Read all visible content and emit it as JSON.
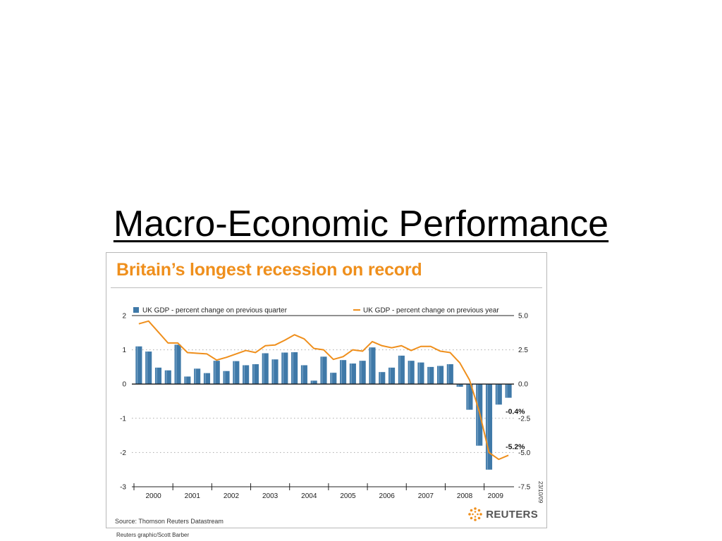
{
  "slide": {
    "title": "Macro-Economic Performance"
  },
  "chart_data": {
    "type": "bar",
    "title": "Britain’s longest recession on record",
    "source": "Source: Thomson Reuters Datastream",
    "logo": "REUTERS",
    "credit": "Reuters graphic/Scott Barber",
    "date_stamp": "23/10/09",
    "colors": {
      "bar": "#3f79a8",
      "line": "#ef8f1c",
      "title": "#ef8f1c"
    },
    "years": [
      "2000",
      "2001",
      "2002",
      "2003",
      "2004",
      "2005",
      "2006",
      "2007",
      "2008",
      "2009"
    ],
    "left_axis": {
      "ylim": [
        -3,
        2
      ],
      "ticks": [
        "2",
        "1",
        "0",
        "-1",
        "-2",
        "-3"
      ]
    },
    "right_axis": {
      "ylim": [
        -7.5,
        5.0
      ],
      "ticks": [
        "5.0",
        "2.5",
        "0.0",
        "-2.5",
        "-5.0",
        "-7.5"
      ]
    },
    "grid": "dotted",
    "series": [
      {
        "name": "UK GDP - percent change on previous quarter",
        "kind": "bar",
        "axis": "left",
        "values": [
          1.1,
          0.95,
          0.48,
          0.4,
          1.15,
          0.22,
          0.45,
          0.32,
          0.68,
          0.38,
          0.67,
          0.55,
          0.58,
          0.9,
          0.72,
          0.92,
          0.93,
          0.55,
          0.1,
          0.8,
          0.33,
          0.7,
          0.6,
          0.68,
          1.07,
          0.35,
          0.48,
          0.83,
          0.68,
          0.63,
          0.5,
          0.53,
          0.58,
          -0.08,
          -0.75,
          -1.8,
          -2.5,
          -0.6,
          -0.4
        ]
      },
      {
        "name": "UK GDP - percent change on previous year",
        "kind": "line",
        "axis": "right",
        "values": [
          4.4,
          4.6,
          3.8,
          3.0,
          3.0,
          2.3,
          2.25,
          2.2,
          1.75,
          1.95,
          2.2,
          2.45,
          2.3,
          2.8,
          2.85,
          3.2,
          3.6,
          3.3,
          2.6,
          2.5,
          1.8,
          2.0,
          2.5,
          2.4,
          3.1,
          2.8,
          2.65,
          2.8,
          2.45,
          2.75,
          2.75,
          2.4,
          2.3,
          1.55,
          0.3,
          -2.0,
          -5.0,
          -5.5,
          -5.2
        ]
      }
    ],
    "annotations": [
      {
        "text": "-0.4%",
        "series": "UK GDP - percent change on previous quarter",
        "value": -0.4
      },
      {
        "text": "-5.2%",
        "series": "UK GDP - percent change on previous year",
        "value": -5.2
      }
    ]
  }
}
